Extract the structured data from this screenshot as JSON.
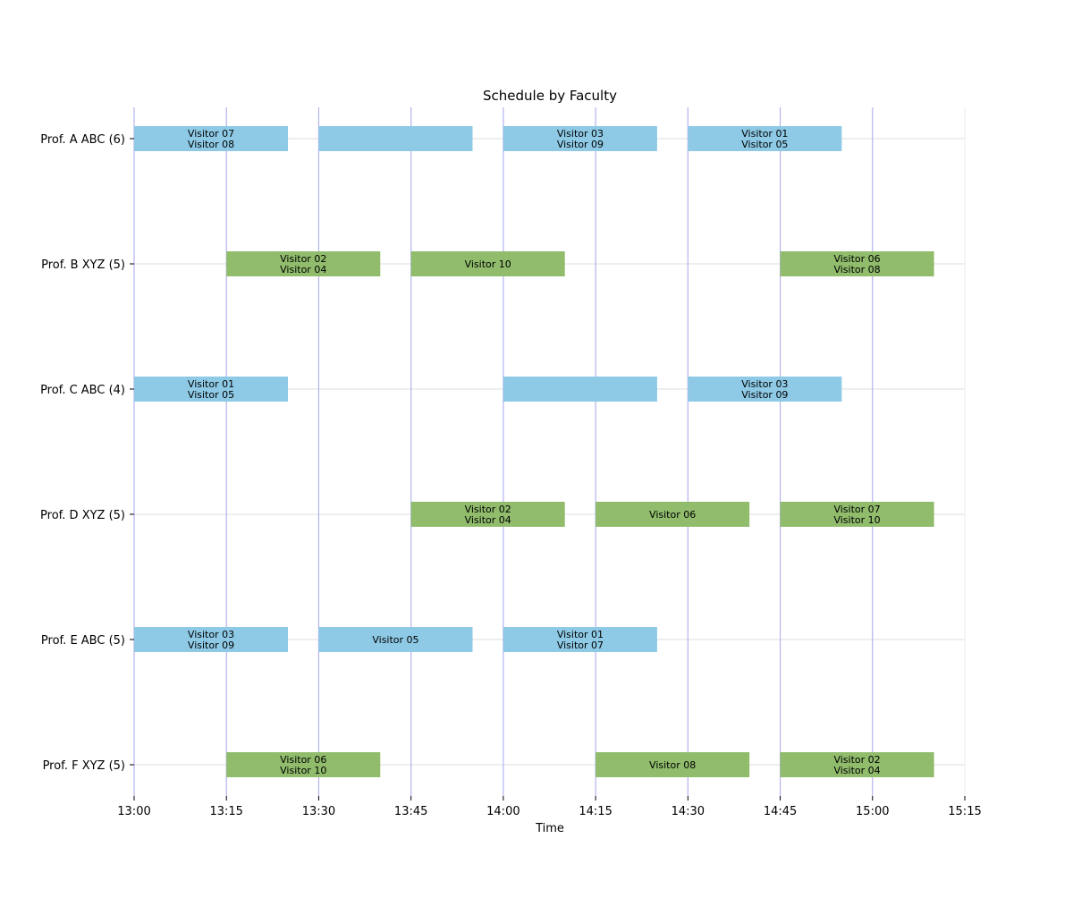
{
  "chart_data": {
    "type": "bar",
    "orientation": "horizontal-timeline",
    "title": "Schedule by Faculty",
    "xlabel": "Time",
    "ylabel": "",
    "x_ticks": [
      "13:00",
      "13:15",
      "13:30",
      "13:45",
      "14:00",
      "14:15",
      "14:30",
      "14:45",
      "15:00",
      "15:15"
    ],
    "xlim": [
      "13:00",
      "15:15"
    ],
    "vertical_gridlines_at": [
      "13:00",
      "13:15",
      "13:30",
      "13:45",
      "14:00",
      "14:15",
      "14:30",
      "14:45",
      "15:00"
    ],
    "colors": {
      "abc": "#8ecae6",
      "xyz": "#90bc6c",
      "vgrid": "#b3b3f0",
      "hgrid": "#dddddd",
      "axis": "#000000"
    },
    "rows": [
      {
        "label": "Prof. A ABC (6)",
        "color_key": "abc",
        "meetings": [
          {
            "start": "13:00",
            "end": "13:25",
            "visitors": [
              "Visitor 07",
              "Visitor 08"
            ]
          },
          {
            "start": "13:30",
            "end": "13:55",
            "visitors": []
          },
          {
            "start": "14:00",
            "end": "14:25",
            "visitors": [
              "Visitor 03",
              "Visitor 09"
            ]
          },
          {
            "start": "14:30",
            "end": "14:55",
            "visitors": [
              "Visitor 01",
              "Visitor 05"
            ]
          }
        ]
      },
      {
        "label": "Prof. B XYZ (5)",
        "color_key": "xyz",
        "meetings": [
          {
            "start": "13:15",
            "end": "13:40",
            "visitors": [
              "Visitor 02",
              "Visitor 04"
            ]
          },
          {
            "start": "13:45",
            "end": "14:10",
            "visitors": [
              "Visitor 10"
            ]
          },
          {
            "start": "14:45",
            "end": "15:10",
            "visitors": [
              "Visitor 06",
              "Visitor 08"
            ]
          }
        ]
      },
      {
        "label": "Prof. C ABC (4)",
        "color_key": "abc",
        "meetings": [
          {
            "start": "13:00",
            "end": "13:25",
            "visitors": [
              "Visitor 01",
              "Visitor 05"
            ]
          },
          {
            "start": "14:00",
            "end": "14:25",
            "visitors": []
          },
          {
            "start": "14:30",
            "end": "14:55",
            "visitors": [
              "Visitor 03",
              "Visitor 09"
            ]
          }
        ]
      },
      {
        "label": "Prof. D XYZ (5)",
        "color_key": "xyz",
        "meetings": [
          {
            "start": "13:45",
            "end": "14:10",
            "visitors": [
              "Visitor 02",
              "Visitor 04"
            ]
          },
          {
            "start": "14:15",
            "end": "14:40",
            "visitors": [
              "Visitor 06"
            ]
          },
          {
            "start": "14:45",
            "end": "15:10",
            "visitors": [
              "Visitor 07",
              "Visitor 10"
            ]
          }
        ]
      },
      {
        "label": "Prof. E ABC (5)",
        "color_key": "abc",
        "meetings": [
          {
            "start": "13:00",
            "end": "13:25",
            "visitors": [
              "Visitor 03",
              "Visitor 09"
            ]
          },
          {
            "start": "13:30",
            "end": "13:55",
            "visitors": [
              "Visitor 05"
            ]
          },
          {
            "start": "14:00",
            "end": "14:25",
            "visitors": [
              "Visitor 01",
              "Visitor 07"
            ]
          }
        ]
      },
      {
        "label": "Prof. F XYZ (5)",
        "color_key": "xyz",
        "meetings": [
          {
            "start": "13:15",
            "end": "13:40",
            "visitors": [
              "Visitor 06",
              "Visitor 10"
            ]
          },
          {
            "start": "14:15",
            "end": "14:40",
            "visitors": [
              "Visitor 08"
            ]
          },
          {
            "start": "14:45",
            "end": "15:10",
            "visitors": [
              "Visitor 02",
              "Visitor 04"
            ]
          }
        ]
      }
    ]
  }
}
